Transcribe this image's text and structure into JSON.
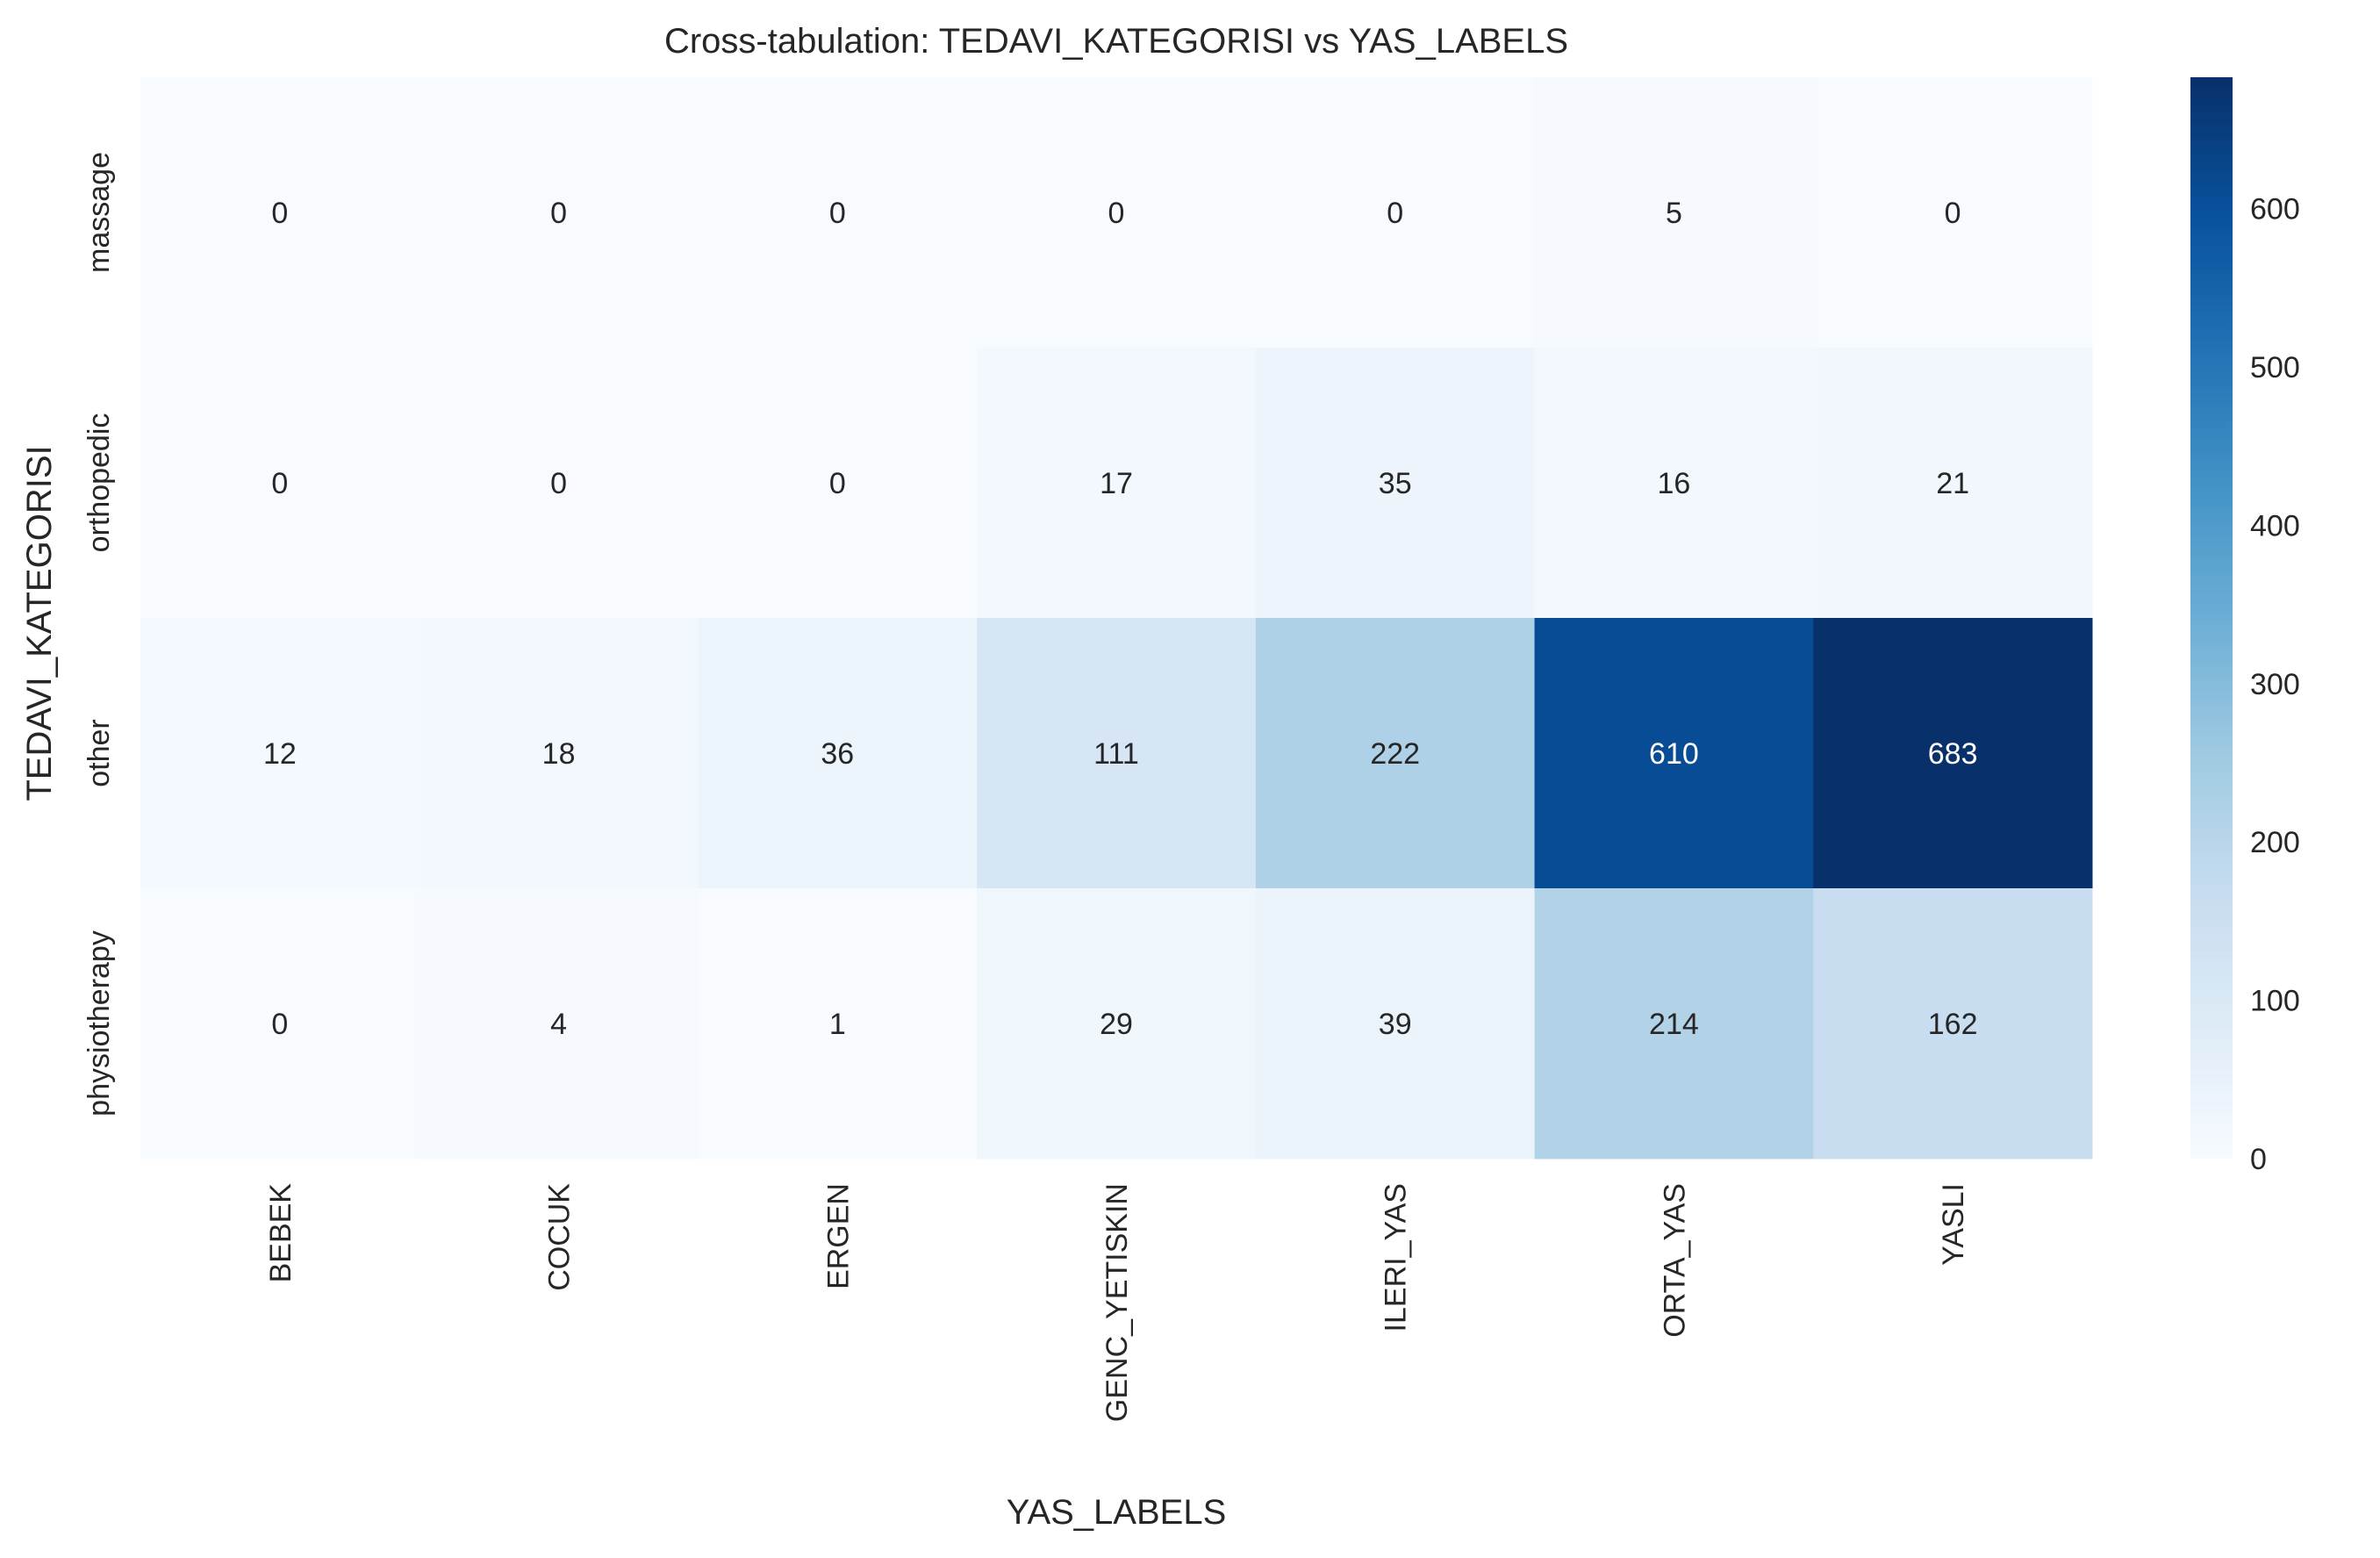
{
  "chart_data": {
    "type": "heatmap",
    "title": "Cross-tabulation: TEDAVI_KATEGORISI vs YAS_LABELS",
    "xlabel": "YAS_LABELS",
    "ylabel": "TEDAVI_KATEGORISI",
    "x_categories": [
      "BEBEK",
      "COCUK",
      "ERGEN",
      "GENC_YETISKIN",
      "ILERI_YAS",
      "ORTA_YAS",
      "YASLI"
    ],
    "y_categories": [
      "massage",
      "orthopedic",
      "other",
      "physiotherapy"
    ],
    "values": [
      [
        0,
        0,
        0,
        0,
        0,
        5,
        0
      ],
      [
        0,
        0,
        0,
        17,
        35,
        16,
        21
      ],
      [
        12,
        18,
        36,
        111,
        222,
        610,
        683
      ],
      [
        0,
        4,
        1,
        29,
        39,
        214,
        162
      ]
    ],
    "colormap": "Blues",
    "color_range": [
      0,
      683
    ],
    "colorbar_ticks": [
      0,
      100,
      200,
      300,
      400,
      500,
      600
    ],
    "annotations": true,
    "grid": false,
    "colors": {
      "low": "#f7fbff",
      "high": "#08306b",
      "text_dark": "#262626",
      "text_light": "#ffffff"
    }
  }
}
